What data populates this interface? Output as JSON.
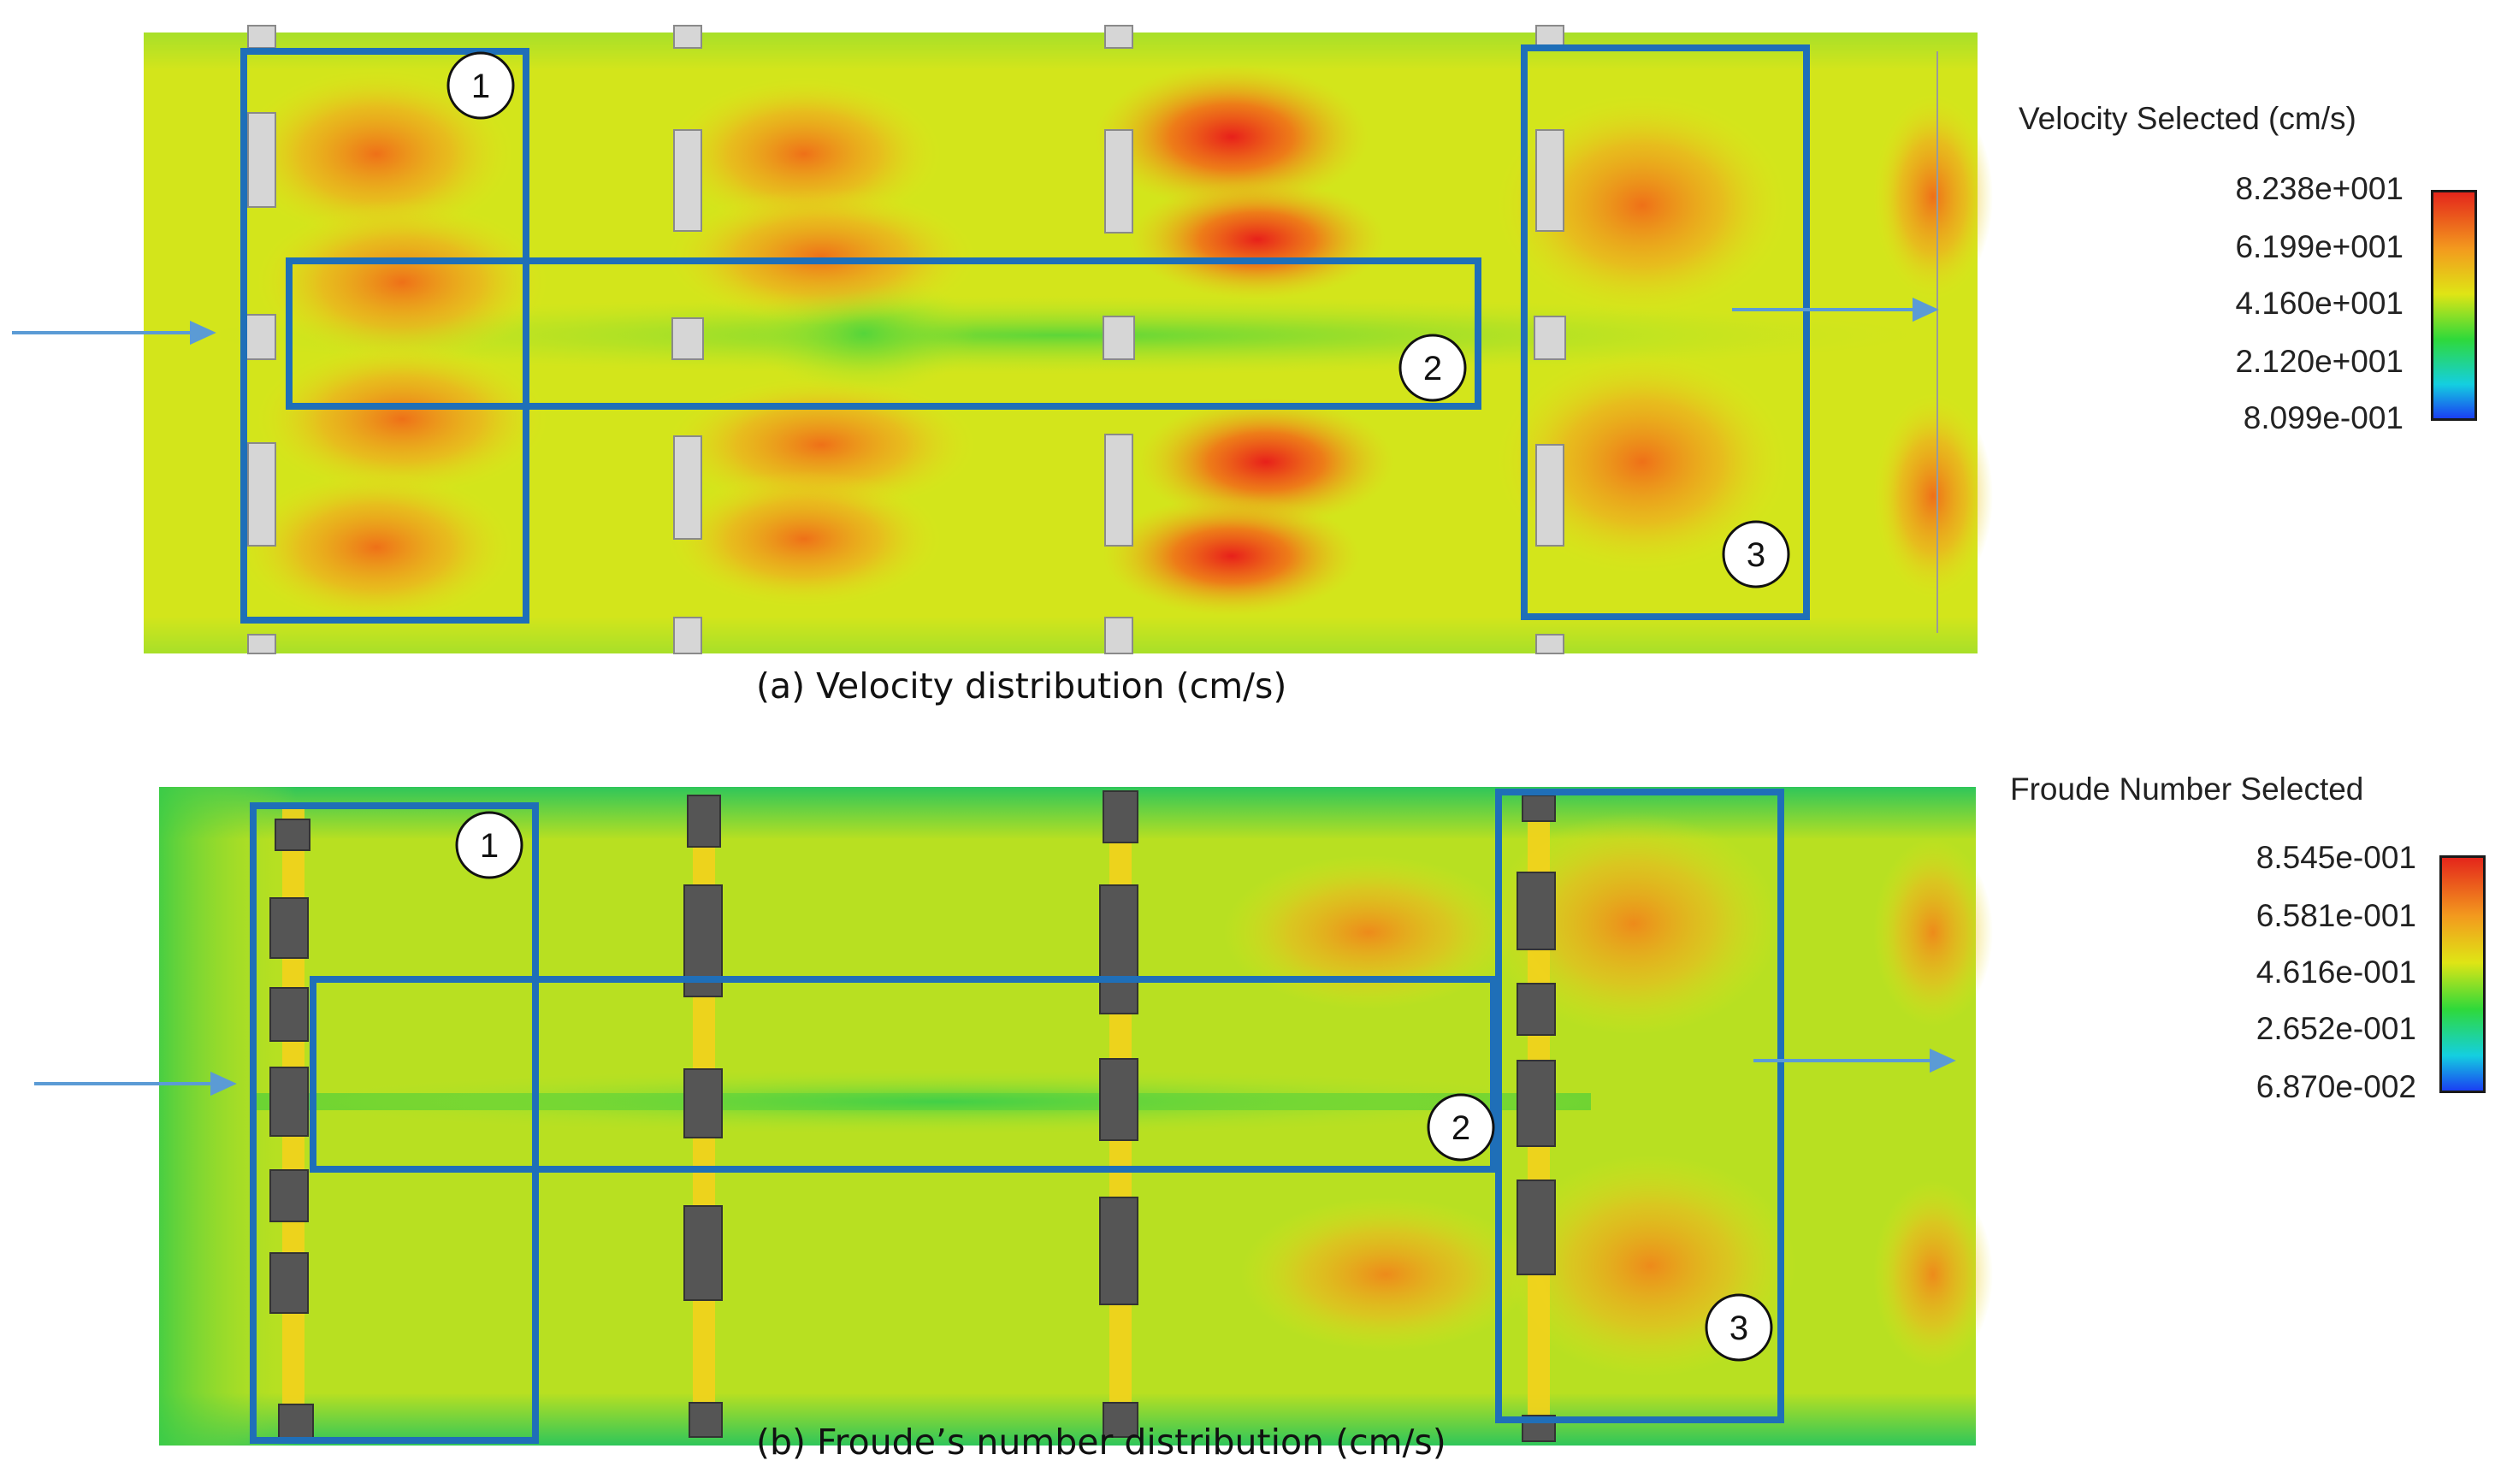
{
  "panels": [
    {
      "id": "a",
      "caption": "(a) Velocity distribution (cm/s)",
      "legend": {
        "title": "Velocity Selected (cm/s)",
        "ticks": [
          "8.238e+001",
          "6.199e+001",
          "4.160e+001",
          "2.120e+001",
          "8.099e-001"
        ]
      },
      "zones": [
        "1",
        "2",
        "3"
      ]
    },
    {
      "id": "b",
      "caption": "(b) Froude’s number distribution (cm/s)",
      "legend": {
        "title": "Froude Number Selected",
        "ticks": [
          "8.545e-001",
          "6.581e-001",
          "4.616e-001",
          "2.652e-001",
          "6.870e-002"
        ]
      },
      "zones": [
        "1",
        "2",
        "3"
      ]
    }
  ],
  "colors": {
    "zone_box": "#1f6fb8",
    "flow_arrow": "#5b9bd5",
    "field_base": "#d9e81a",
    "field_hot": "#f07a1a",
    "field_peak": "#e8251a",
    "field_cool": "#5fd838",
    "colorbar_top": "#e4261b",
    "colorbar_bottom": "#1a3ff2"
  }
}
